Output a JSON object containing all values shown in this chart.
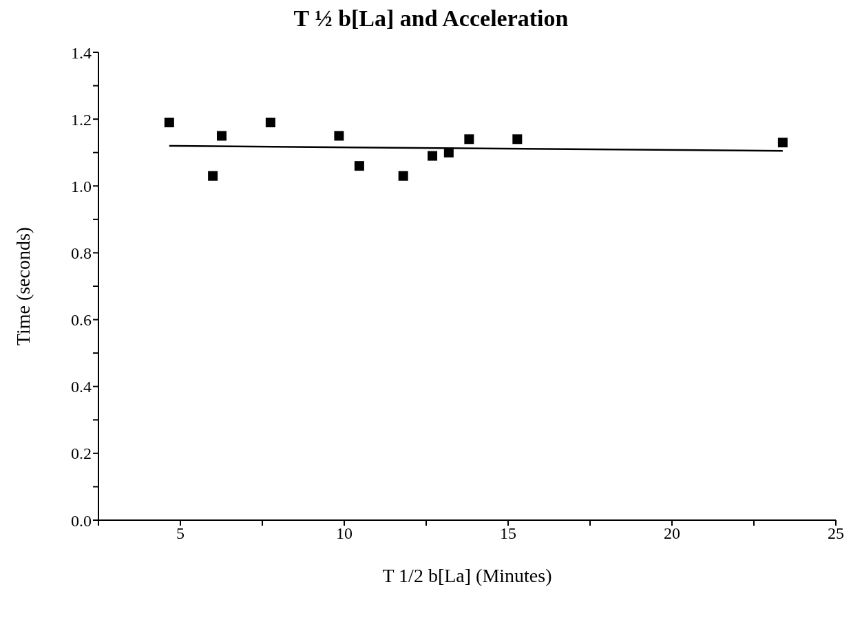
{
  "chart_data": {
    "type": "scatter",
    "title": "T ½ b[La] and Acceleration",
    "xlabel": "T 1/2 b[La] (Minutes)",
    "ylabel": "Time (seconds)",
    "xlim": [
      2.5,
      25
    ],
    "xticks": [
      {
        "value": 2.5,
        "label": null
      },
      5,
      {
        "value": 7.5,
        "label": null
      },
      10,
      {
        "value": 12.5,
        "label": null
      },
      15,
      {
        "value": 17.5,
        "label": null
      },
      20,
      {
        "value": 22.5,
        "label": null
      },
      25
    ],
    "ylim": [
      0,
      1.4
    ],
    "yticks": [
      {
        "value": 0,
        "label": "0.0"
      },
      {
        "value": 0.1,
        "label": null
      },
      {
        "value": 0.2,
        "label": "0.2"
      },
      {
        "value": 0.3,
        "label": null
      },
      {
        "value": 0.4,
        "label": "0.4"
      },
      {
        "value": 0.5,
        "label": null
      },
      {
        "value": 0.6,
        "label": "0.6"
      },
      {
        "value": 0.7,
        "label": null
      },
      {
        "value": 0.8,
        "label": "0.8"
      },
      {
        "value": 0.9,
        "label": null
      },
      {
        "value": 1,
        "label": "1.0"
      },
      {
        "value": 1.1,
        "label": null
      },
      {
        "value": 1.2,
        "label": "1.2"
      },
      {
        "value": 1.3,
        "label": null
      },
      {
        "value": 1.4,
        "label": "1.4"
      }
    ],
    "grid": false,
    "legend": false,
    "marker": "square",
    "series": [
      {
        "type": "scatter",
        "color": "#000000",
        "x": [
          4.66,
          5.99,
          6.26,
          7.75,
          9.84,
          10.46,
          11.8,
          12.69,
          13.19,
          13.81,
          15.28,
          23.38
        ],
        "values": [
          1.19,
          1.03,
          1.15,
          1.19,
          1.15,
          1.06,
          1.03,
          1.09,
          1.1,
          1.14,
          1.14,
          1.13
        ]
      },
      {
        "type": "line",
        "color": "#000000",
        "marker": "none",
        "line_style": "solid",
        "x": [
          4.66,
          23.38
        ],
        "values": [
          1.12,
          1.105
        ]
      }
    ]
  }
}
